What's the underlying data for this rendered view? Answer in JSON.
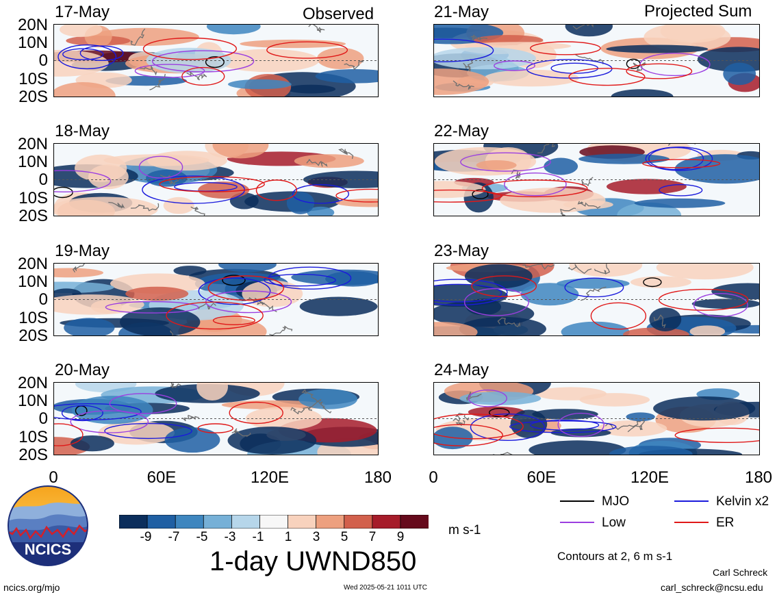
{
  "titles": {
    "observed": "Observed",
    "projected": "Projected Sum"
  },
  "panels": {
    "observed": [
      "17-May",
      "18-May",
      "19-May",
      "20-May"
    ],
    "projected": [
      "21-May",
      "22-May",
      "23-May",
      "24-May"
    ]
  },
  "y_ticks": [
    "20N",
    "10N",
    "0",
    "10S",
    "20S"
  ],
  "x_ticks": [
    "0",
    "60E",
    "120E",
    "180"
  ],
  "colorbar": {
    "labels": [
      "-9",
      "-7",
      "-5",
      "-3",
      "-1",
      "1",
      "3",
      "5",
      "7",
      "9"
    ],
    "colors": [
      "#0b2e5c",
      "#1f5fa3",
      "#3e86bf",
      "#76b0d7",
      "#b6d6ea",
      "#f7f7f7",
      "#f8d2bd",
      "#eda07f",
      "#d2604c",
      "#a61c2a",
      "#660a1c"
    ],
    "units": "m s-1",
    "title": "1-day UWND850"
  },
  "legend": {
    "items": [
      {
        "label": "MJO",
        "color": "#000000"
      },
      {
        "label": "Kelvin x2",
        "color": "#1a1adc"
      },
      {
        "label": "Low",
        "color": "#9b3ee0"
      },
      {
        "label": "ER",
        "color": "#e01818"
      }
    ],
    "note": "Contours at 2, 6 m s-1"
  },
  "logo": {
    "text": "NCICS"
  },
  "footer": {
    "site": "ncics.org/mjo",
    "timestamp": "Wed 2025-05-21 1011 UTC",
    "author": "Carl Schreck",
    "email": "carl_schreck@ncsu.edu"
  }
}
